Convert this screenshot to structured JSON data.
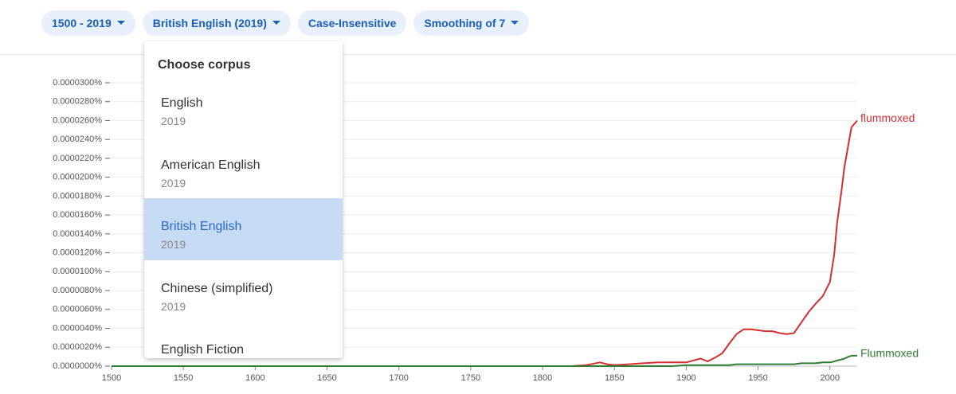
{
  "toolbar": {
    "chips": [
      "1500 - 2019",
      "British English (2019)",
      "Case-Insensitive",
      "Smoothing of 7"
    ]
  },
  "dropdown": {
    "title": "Choose corpus",
    "options": [
      {
        "name": "English",
        "year": "2019"
      },
      {
        "name": "American English",
        "year": "2019"
      },
      {
        "name": "British English",
        "year": "2019"
      },
      {
        "name": "Chinese (simplified)",
        "year": "2019"
      },
      {
        "name": "English Fiction"
      }
    ]
  },
  "chart_data": {
    "type": "line",
    "x": [
      1500,
      1800,
      1820,
      1830,
      1840,
      1845,
      1850,
      1860,
      1870,
      1880,
      1890,
      1900,
      1910,
      1915,
      1920,
      1925,
      1930,
      1935,
      1940,
      1945,
      1950,
      1955,
      1960,
      1965,
      1970,
      1975,
      1980,
      1985,
      1990,
      1995,
      2000,
      2003,
      2005,
      2008,
      2010,
      2013,
      2015,
      2019
    ],
    "series": [
      {
        "name": "flummoxed",
        "color": "#d32f2f",
        "values": [
          0,
          0,
          0,
          1e-07,
          4e-07,
          2e-07,
          1e-07,
          2e-07,
          3e-07,
          4e-07,
          4e-07,
          4e-07,
          8e-07,
          5e-07,
          9e-07,
          1.35e-06,
          2.4e-06,
          3.4e-06,
          3.9e-06,
          3.9e-06,
          3.8e-06,
          3.7e-06,
          3.7e-06,
          3.5e-06,
          3.4e-06,
          3.5e-06,
          4.6e-06,
          5.7e-06,
          6.6e-06,
          7.4e-06,
          8.9e-06,
          1.18e-05,
          1.52e-05,
          1.85e-05,
          2.1e-05,
          2.36e-05,
          2.53e-05,
          2.6e-05
        ]
      },
      {
        "name": "Flummoxed",
        "color": "#2e7d32",
        "values": [
          0,
          0,
          0,
          0,
          0,
          0,
          0,
          0,
          0,
          0,
          0,
          1e-07,
          1e-07,
          1e-07,
          1e-07,
          1e-07,
          1e-07,
          2e-07,
          2e-07,
          2e-07,
          2e-07,
          2e-07,
          2e-07,
          2e-07,
          2e-07,
          2e-07,
          3e-07,
          3e-07,
          3e-07,
          4e-07,
          4e-07,
          5e-07,
          6e-07,
          7e-07,
          8e-07,
          1e-06,
          1.1e-06,
          1.1e-06
        ]
      }
    ],
    "xlim": [
      1500,
      2019
    ],
    "xticks": [
      1500,
      1550,
      1600,
      1650,
      1700,
      1750,
      1800,
      1850,
      1900,
      1950,
      2000
    ],
    "ylim": [
      0,
      3e-05
    ],
    "yticks": [
      {
        "value": 0,
        "label": "0.0000000%"
      },
      {
        "value": 2e-06,
        "label": "0.0000020%"
      },
      {
        "value": 4e-06,
        "label": "0.0000040%"
      },
      {
        "value": 6e-06,
        "label": "0.0000060%"
      },
      {
        "value": 8e-06,
        "label": "0.0000080%"
      },
      {
        "value": 1e-05,
        "label": "0.0000100%"
      },
      {
        "value": 1.2e-05,
        "label": "0.0000120%"
      },
      {
        "value": 1.4e-05,
        "label": "0.0000140%"
      },
      {
        "value": 1.6e-05,
        "label": "0.0000160%"
      },
      {
        "value": 1.8e-05,
        "label": "0.0000180%"
      },
      {
        "value": 2e-05,
        "label": "0.0000200%"
      },
      {
        "value": 2.2e-05,
        "label": "0.0000220%"
      },
      {
        "value": 2.4e-05,
        "label": "0.0000240%"
      },
      {
        "value": 2.6e-05,
        "label": "0.0000260%"
      },
      {
        "value": 2.8e-05,
        "label": "0.0000280%"
      },
      {
        "value": 3e-05,
        "label": "0.0000300%"
      }
    ],
    "grid": true
  }
}
